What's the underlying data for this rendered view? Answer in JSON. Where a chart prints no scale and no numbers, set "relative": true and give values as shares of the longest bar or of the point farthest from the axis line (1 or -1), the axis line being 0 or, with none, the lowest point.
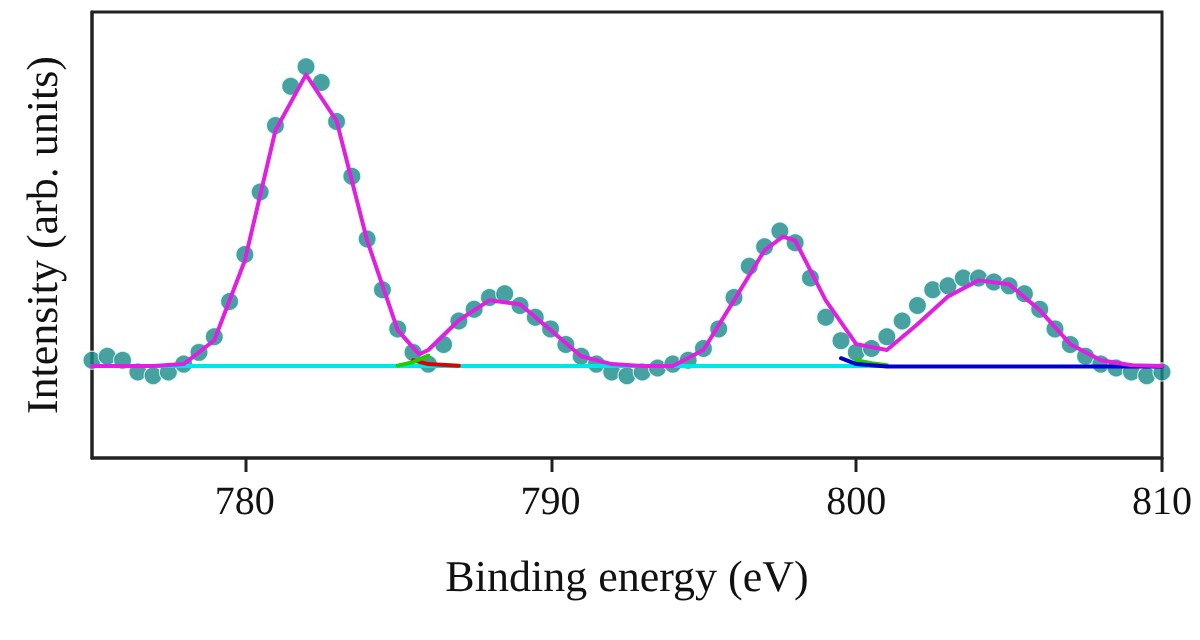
{
  "chart_data": {
    "type": "line",
    "xlabel": "Binding energy (eV)",
    "ylabel": "Intensity (arb. units)",
    "relative": true,
    "xlim": [
      775,
      810
    ],
    "xticks": [
      780,
      790,
      800,
      810
    ],
    "tick_labels": "x",
    "grid": false,
    "line_style": "solid",
    "series": [
      {
        "type": "scatter",
        "marker": "circle",
        "color": "#1a8a8a",
        "x": [
          775,
          775.5,
          776,
          776.5,
          777,
          777.5,
          778,
          778.5,
          779,
          779.5,
          780,
          780.5,
          781,
          781.5,
          782,
          782.5,
          783,
          783.5,
          784,
          784.5,
          785,
          785.5,
          786,
          786.5,
          787,
          787.5,
          788,
          788.5,
          789,
          789.5,
          790,
          790.5,
          791,
          791.5,
          792,
          792.5,
          793,
          793.5,
          794,
          794.5,
          795,
          795.5,
          796,
          796.5,
          797,
          797.5,
          798,
          798.5,
          799,
          799.5,
          800,
          800.5,
          801,
          801.5,
          802,
          802.5,
          803,
          803.5,
          804,
          804.5,
          805,
          805.5,
          806,
          806.5,
          807,
          807.5,
          808,
          808.5,
          809,
          809.5,
          810
        ],
        "values": [
          0.25,
          0.26,
          0.25,
          0.22,
          0.21,
          0.22,
          0.24,
          0.27,
          0.31,
          0.4,
          0.52,
          0.68,
          0.85,
          0.95,
          1.0,
          0.96,
          0.86,
          0.72,
          0.56,
          0.43,
          0.33,
          0.27,
          0.24,
          0.29,
          0.35,
          0.38,
          0.41,
          0.42,
          0.39,
          0.36,
          0.33,
          0.29,
          0.26,
          0.24,
          0.22,
          0.21,
          0.22,
          0.23,
          0.24,
          0.25,
          0.28,
          0.33,
          0.41,
          0.49,
          0.54,
          0.58,
          0.55,
          0.46,
          0.36,
          0.3,
          0.27,
          0.28,
          0.31,
          0.35,
          0.39,
          0.43,
          0.44,
          0.46,
          0.46,
          0.45,
          0.44,
          0.42,
          0.38,
          0.33,
          0.29,
          0.26,
          0.24,
          0.23,
          0.22,
          0.21,
          0.22
        ]
      },
      {
        "marker": "none",
        "color": "#00e5e5",
        "x": [
          775,
          801
        ],
        "values": [
          0.235,
          0.235
        ]
      },
      {
        "marker": "none",
        "color": "#e00000",
        "x": [
          785.5,
          786,
          787
        ],
        "values": [
          0.25,
          0.24,
          0.236
        ]
      },
      {
        "marker": "none",
        "color": "#22cc00",
        "x": [
          785,
          785.5,
          786,
          786.5,
          799.5,
          800,
          800.5,
          801
        ],
        "values": [
          0.236,
          0.245,
          0.262,
          null,
          null,
          0.25,
          0.242,
          0.237
        ]
      },
      {
        "marker": "none",
        "color": "#0000cc",
        "x": [
          799.5,
          800,
          801,
          810
        ],
        "values": [
          0.255,
          0.24,
          0.234,
          0.234
        ]
      },
      {
        "marker": "none",
        "color": "#e020e0",
        "x": [
          775,
          777,
          778,
          779,
          780,
          781,
          782,
          783,
          784,
          785,
          785.7,
          786,
          787,
          788,
          789,
          790,
          791,
          792,
          793,
          794,
          795,
          796,
          797,
          797.6,
          798,
          799,
          800,
          801,
          802,
          803,
          804,
          805,
          806,
          807,
          808,
          809,
          810
        ],
        "values": [
          0.235,
          0.235,
          0.24,
          0.301,
          0.505,
          0.837,
          0.98,
          0.862,
          0.556,
          0.327,
          0.265,
          0.276,
          0.352,
          0.403,
          0.393,
          0.327,
          0.26,
          0.24,
          0.235,
          0.235,
          0.276,
          0.403,
          0.531,
          0.566,
          0.556,
          0.403,
          0.291,
          0.276,
          0.342,
          0.413,
          0.454,
          0.444,
          0.378,
          0.291,
          0.25,
          0.237,
          0.235
        ]
      }
    ]
  }
}
